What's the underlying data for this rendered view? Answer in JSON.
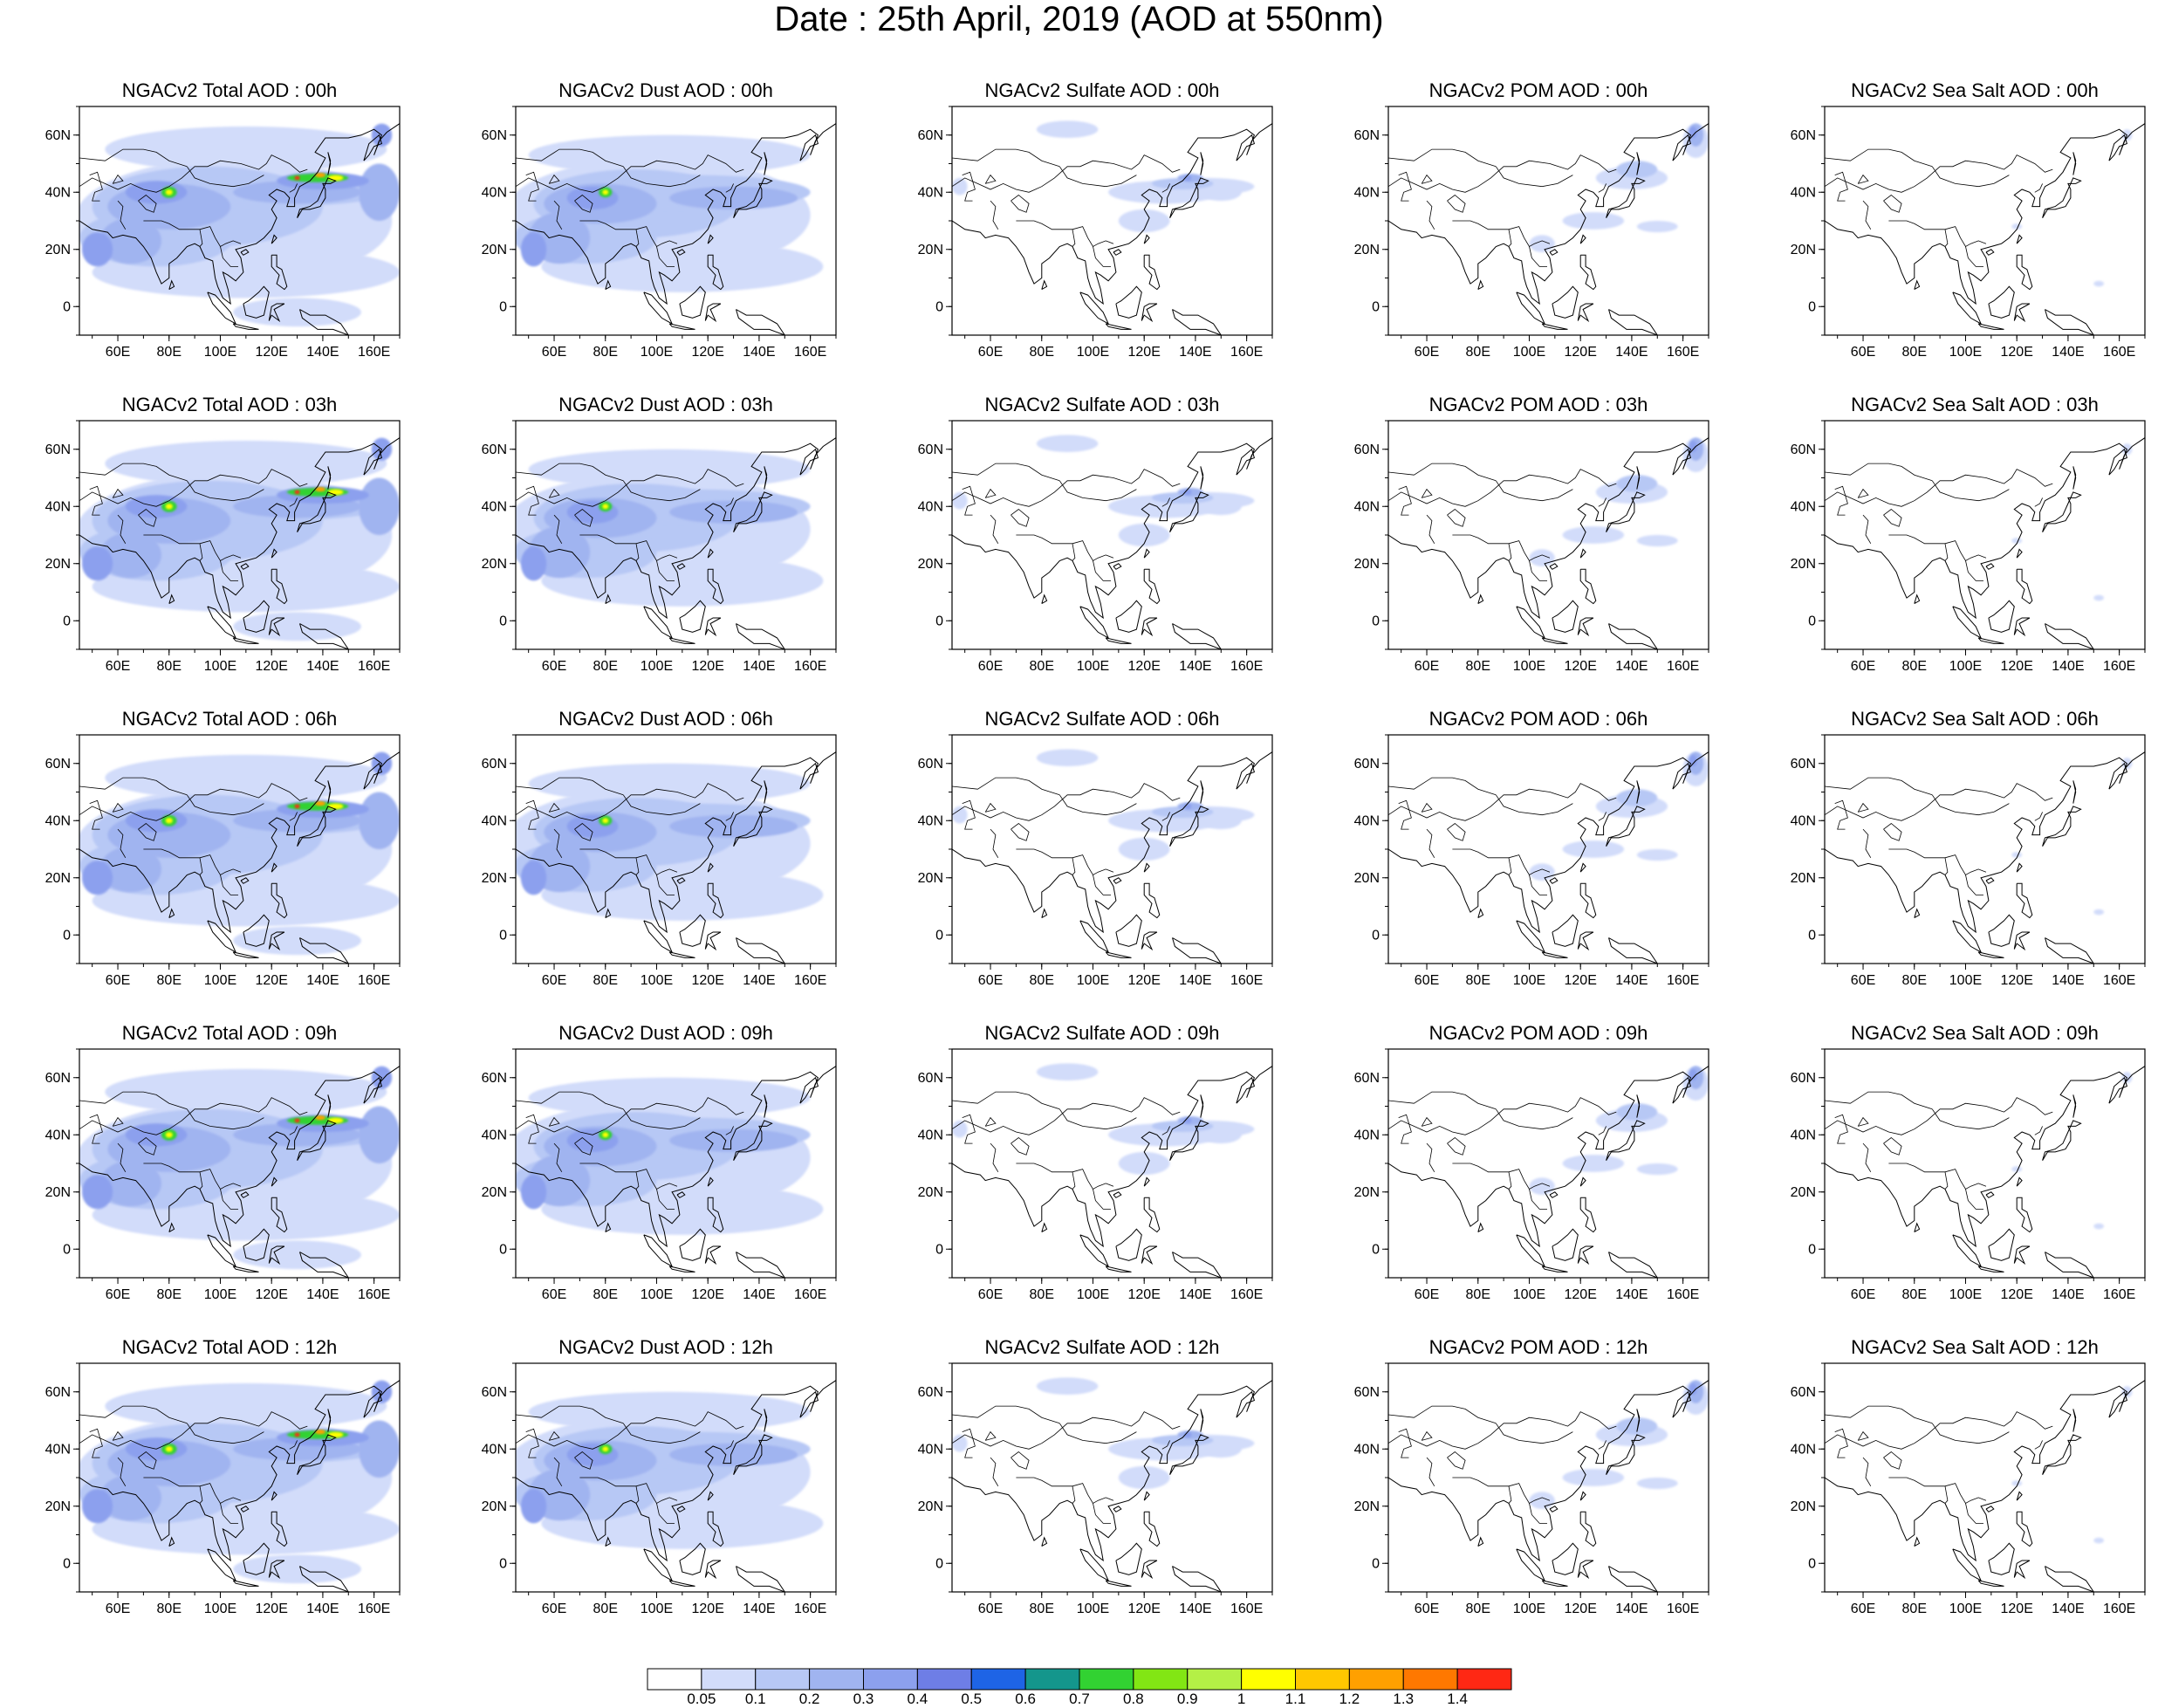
{
  "title": "Date : 25th April, 2019 (AOD at 550nm)",
  "panels": [
    [
      "NGACv2 Total AOD : 00h",
      "NGACv2 Dust AOD : 00h",
      "NGACv2 Sulfate AOD : 00h",
      "NGACv2 POM AOD : 00h",
      "NGACv2 Sea Salt AOD : 00h"
    ],
    [
      "NGACv2 Total AOD : 03h",
      "NGACv2 Dust AOD : 03h",
      "NGACv2 Sulfate AOD : 03h",
      "NGACv2 POM AOD : 03h",
      "NGACv2 Sea Salt AOD : 03h"
    ],
    [
      "NGACv2 Total AOD : 06h",
      "NGACv2 Dust AOD : 06h",
      "NGACv2 Sulfate AOD : 06h",
      "NGACv2 POM AOD : 06h",
      "NGACv2 Sea Salt AOD : 06h"
    ],
    [
      "NGACv2 Total AOD : 09h",
      "NGACv2 Dust AOD : 09h",
      "NGACv2 Sulfate AOD : 09h",
      "NGACv2 POM AOD : 09h",
      "NGACv2 Sea Salt  AOD : 09h"
    ],
    [
      "NGACv2 Total AOD  : 12h",
      "NGACv2 Dust AOD : 12h",
      "NGACv2 Sulfate AOD : 12h",
      "NGACv2 POM  AOD : 12h",
      "NGACv2 Sea Salt  AOD : 12h"
    ]
  ],
  "lon_labels": [
    "60E",
    "80E",
    "100E",
    "120E",
    "140E",
    "160E"
  ],
  "lat_labels": [
    "60N",
    "40N",
    "20N",
    "0"
  ],
  "colorbar": {
    "labels": [
      "0.05",
      "0.1",
      "0.2",
      "0.3",
      "0.4",
      "0.5",
      "0.6",
      "0.7",
      "0.8",
      "0.9",
      "1",
      "1.1",
      "1.2",
      "1.3",
      "1.4"
    ],
    "colors": [
      "#ffffff",
      "#d2dcfa",
      "#b7c8f5",
      "#a0b4f0",
      "#8ca0ee",
      "#6e7ee6",
      "#1e64e6",
      "#14968c",
      "#32d232",
      "#82e614",
      "#b4f046",
      "#ffff00",
      "#ffc800",
      "#ffa000",
      "#ff7800",
      "#ff2814"
    ]
  },
  "map_colors": {
    "land_outline": "#000000",
    "light": "#d2dcfa",
    "medium": "#b7c8f5",
    "strong": "#a0b4f0",
    "deep": "#8ca0ee",
    "dark": "#6e7ee6",
    "hot_green": "#32d232",
    "hot_yellow": "#ffff00",
    "hot_orange": "#ffa000",
    "hot_red": "#ff2814"
  }
}
